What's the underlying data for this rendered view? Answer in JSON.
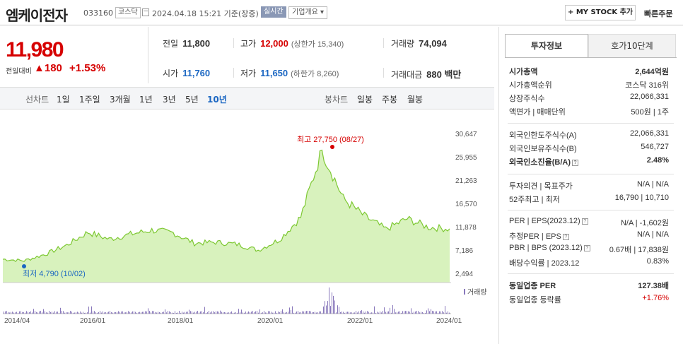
{
  "header": {
    "title": "엠케이전자",
    "code": "033160",
    "market": "코스닥",
    "datetime": "2024.04.18 15:21  기준(장중)",
    "realtime": "실시간",
    "overview": "기업개요 ▾",
    "mystock": "+ MY STOCK 추가",
    "quick_order": "빠른주문"
  },
  "price": {
    "current": "11,980",
    "change_label": "전일대비",
    "change_abs": "▲180",
    "change_pct": "+1.53%"
  },
  "stats": {
    "prev_label": "전일",
    "prev": "11,800",
    "high_label": "고가",
    "high": "12,000",
    "high_sub": "(상한가 15,340)",
    "vol_label": "거래량",
    "vol": "74,094",
    "open_label": "시가",
    "open": "11,760",
    "low_label": "저가",
    "low": "11,650",
    "low_sub": "(하한가 8,260)",
    "amount_label": "거래대금",
    "amount": "880 백만"
  },
  "period_bar": {
    "line_label": "선차트",
    "line_items": [
      "1일",
      "1주일",
      "3개월",
      "1년",
      "3년",
      "5년",
      "10년"
    ],
    "candle_label": "봉차트",
    "candle_items": [
      "일봉",
      "주봉",
      "월봉"
    ]
  },
  "chart_labels": {
    "high": "최고 27,750 (08/27)",
    "low": "최저 4,790 (10/02)",
    "volume_legend": "거래량"
  },
  "colors": {
    "up": "#d60000",
    "down": "#1a66c2",
    "line": "#7dc832",
    "fill": "#d8f2bd",
    "volume": "#8877bb"
  },
  "chart_data": {
    "type": "area",
    "x": [
      "2014/04",
      "2014/10",
      "2015/04",
      "2015/10",
      "2016/04",
      "2016/10",
      "2017/04",
      "2017/10",
      "2018/04",
      "2018/10",
      "2019/04",
      "2019/10",
      "2020/04",
      "2020/10",
      "2021/04",
      "2021/08",
      "2021/10",
      "2022/04",
      "2022/10",
      "2023/04",
      "2023/10",
      "2024/04"
    ],
    "series": [
      {
        "values": [
          5900,
          5600,
          6900,
          8700,
          11300,
          9900,
          10900,
          11700,
          11200,
          9100,
          9300,
          8900,
          7700,
          9800,
          14300,
          27750,
          18000,
          14500,
          11900,
          14000,
          12300,
          11980
        ]
      }
    ],
    "y_ticks": [
      "30,647",
      "25,955",
      "21,263",
      "16,570",
      "11,878",
      "7,186",
      "2,494"
    ],
    "x_ticks": [
      "2014/04",
      "2016/01",
      "2018/01",
      "2020/01",
      "2022/01",
      "2024/01"
    ],
    "ylim": [
      2494,
      30647
    ],
    "grid": false
  },
  "right": {
    "tabs": [
      "투자정보",
      "호가10단계"
    ],
    "rows": [
      {
        "label": "시가총액",
        "value": "2,644억원",
        "bold": true
      },
      {
        "label": "시가총액순위",
        "value": "코스닥 316위"
      },
      {
        "label": "상장주식수",
        "value": "22,066,331"
      },
      {
        "label": "액면가 | 매매단위",
        "value": "500원  |  1주"
      },
      {
        "label": "외국인한도주식수(A)",
        "value": "22,066,331"
      },
      {
        "label": "외국인보유주식수(B)",
        "value": "546,727"
      },
      {
        "label": "외국인소진율(B/A)",
        "value": "2.48%",
        "bold": true
      },
      {
        "label": "투자의견 | 목표주가",
        "value": "N/A  |  N/A"
      },
      {
        "label": "52주최고 | 최저",
        "value": "16,790  |  10,710"
      },
      {
        "label": "PER | EPS(2023.12)",
        "value": "N/A  |  -1,602원"
      },
      {
        "label": "추정PER | EPS",
        "value": "N/A  |  N/A"
      },
      {
        "label": "PBR | BPS (2023.12)",
        "value": "0.67배  |  17,838원"
      },
      {
        "label": "배당수익률 | 2023.12",
        "value": "0.83%"
      },
      {
        "label": "동일업종 PER",
        "value": "127.38배",
        "bold": true
      },
      {
        "label": "동일업종 등락률",
        "value": "+1.76%",
        "up": true
      }
    ]
  }
}
